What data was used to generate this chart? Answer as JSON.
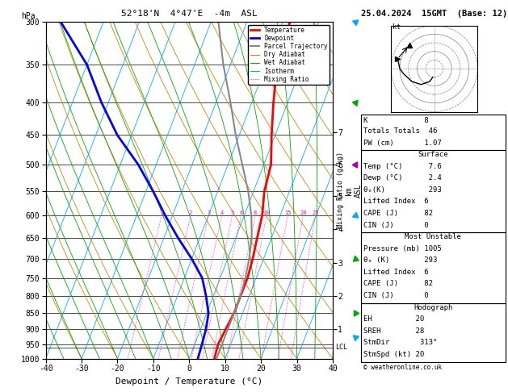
{
  "title_left": "52°18'N  4°47'E  -4m  ASL",
  "title_right": "25.04.2024  15GMT  (Base: 12)",
  "xlabel": "Dewpoint / Temperature (°C)",
  "pressure_ticks": [
    300,
    350,
    400,
    450,
    500,
    550,
    600,
    650,
    700,
    750,
    800,
    850,
    900,
    950,
    1000
  ],
  "temp_range": [
    -40,
    40
  ],
  "temperature_profile": {
    "temps": [
      -8.0,
      -7.0,
      -4.0,
      -1.0,
      2.0,
      3.0,
      5.0,
      6.0,
      7.0,
      7.6,
      7.6,
      7.6,
      7.0,
      6.5,
      7.0
    ],
    "pressures": [
      300,
      350,
      400,
      450,
      500,
      550,
      600,
      650,
      700,
      750,
      800,
      850,
      900,
      950,
      1000
    ]
  },
  "dewpoint_profile": {
    "temps": [
      -72.0,
      -60.0,
      -52.0,
      -44.0,
      -35.0,
      -28.0,
      -22.0,
      -16.0,
      -10.0,
      -5.0,
      -2.0,
      0.5,
      1.5,
      2.0,
      2.4
    ],
    "pressures": [
      300,
      350,
      400,
      450,
      500,
      550,
      600,
      650,
      700,
      750,
      800,
      850,
      900,
      950,
      1000
    ]
  },
  "parcel_trajectory": {
    "temps": [
      -28.0,
      -22.0,
      -16.0,
      -11.0,
      -6.0,
      -1.5,
      2.0,
      4.5,
      6.0,
      7.0,
      7.6,
      7.6,
      7.6,
      7.6,
      7.6
    ],
    "pressures": [
      300,
      350,
      400,
      450,
      500,
      550,
      600,
      650,
      700,
      750,
      800,
      850,
      900,
      950,
      1000
    ]
  },
  "lcl_pressure": 960,
  "km_ticks": {
    "values": [
      1,
      2,
      3,
      4,
      5,
      6,
      7
    ],
    "pressures": [
      900,
      800,
      710,
      630,
      560,
      500,
      445
    ]
  },
  "colors": {
    "temperature": "#ff0000",
    "dewpoint": "#0000ff",
    "parcel": "#888888",
    "dry_adiabat": "#cc8800",
    "wet_adiabat": "#00aa00",
    "isotherm": "#00aaff",
    "mixing_ratio": "#ff00bb"
  },
  "info_panel": {
    "K": 8,
    "TotTot": 46,
    "PW": "1.07",
    "surface_temp": "7.6",
    "surface_dewp": "2.4",
    "surface_theta_e": 293,
    "surface_li": 6,
    "surface_cape": 82,
    "surface_cin": 0,
    "mu_pressure": 1005,
    "mu_theta_e": 293,
    "mu_li": 6,
    "mu_cape": 82,
    "mu_cin": 0,
    "EH": 20,
    "SREH": 28,
    "StmDir": "313°",
    "StmSpd": 20
  },
  "wind_barbs_right": {
    "pressures": [
      300,
      400,
      500,
      600,
      700,
      850,
      925
    ],
    "colors": [
      "#00aaff",
      "#00aa00",
      "#aa00aa",
      "#00aaff",
      "#00aa00",
      "#00aa00",
      "#00aaff"
    ],
    "directions": [
      290,
      280,
      270,
      250,
      230,
      210,
      190
    ],
    "speeds": [
      40,
      35,
      30,
      25,
      20,
      15,
      10
    ]
  }
}
